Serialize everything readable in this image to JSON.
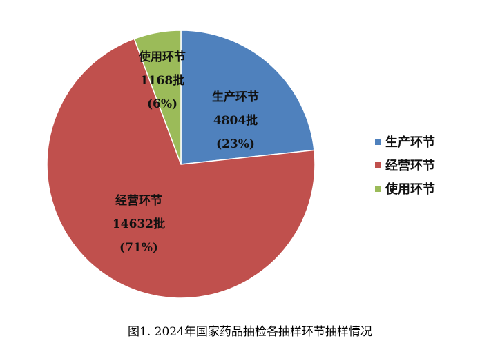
{
  "chart_data": {
    "type": "pie",
    "title": "图1. 2024年国家药品抽检各抽样环节抽样情况",
    "start_angle": "top",
    "direction": "clockwise",
    "series": [
      {
        "name": "生产环节",
        "value": 4804,
        "percent": 23,
        "color": "#4F81BD",
        "value_label": "4804批",
        "percent_label": "(23%)"
      },
      {
        "name": "经营环节",
        "value": 14632,
        "percent": 71,
        "color": "#C0504D",
        "value_label": "14632批",
        "percent_label": "(71%)"
      },
      {
        "name": "使用环节",
        "value": 1168,
        "percent": 6,
        "color": "#9BBB59",
        "value_label": "1168批",
        "percent_label": "(6%)"
      }
    ],
    "legend": {
      "position": "right",
      "items": [
        "生产环节",
        "经营环节",
        "使用环节"
      ]
    }
  }
}
